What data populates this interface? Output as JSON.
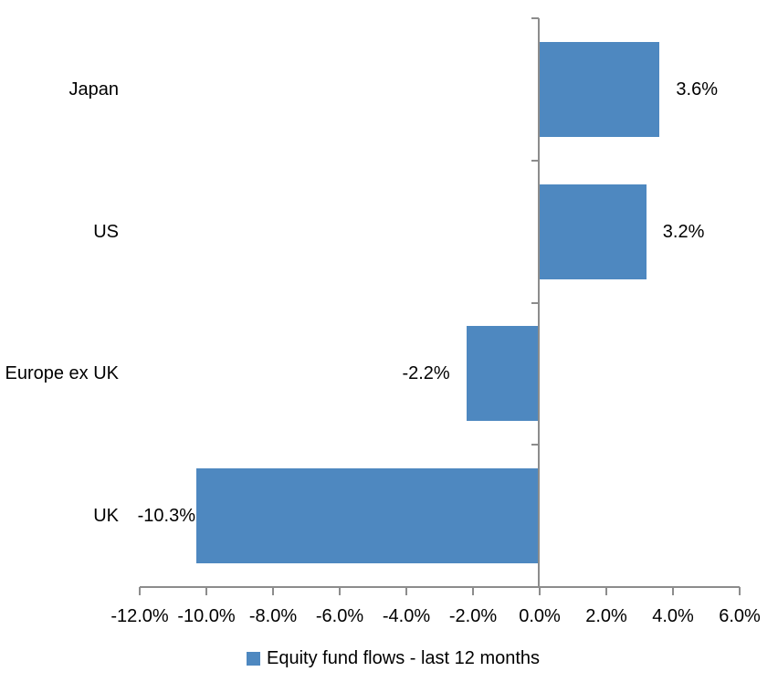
{
  "chart_data": {
    "type": "bar",
    "orientation": "horizontal",
    "title": "",
    "categories": [
      "Japan",
      "US",
      "Europe ex UK",
      "UK"
    ],
    "values": [
      3.6,
      3.2,
      -2.2,
      -10.3
    ],
    "data_labels": [
      "3.6%",
      "3.2%",
      "-2.2%",
      "-10.3%"
    ],
    "series": [
      {
        "name": "Equity fund flows - last 12 months",
        "values": [
          3.6,
          3.2,
          -2.2,
          -10.3
        ]
      }
    ],
    "xlabel": "",
    "ylabel": "",
    "xlim": [
      -12,
      6
    ],
    "x_ticks": [
      -12,
      -10,
      -8,
      -6,
      -4,
      -2,
      0,
      2,
      4,
      6
    ],
    "x_tick_labels": [
      "-12.0%",
      "-10.0%",
      "-8.0%",
      "-6.0%",
      "-4.0%",
      "-2.0%",
      "0.0%",
      "2.0%",
      "4.0%",
      "6.0%"
    ],
    "grid": false,
    "legend_position": "bottom",
    "colors": {
      "bar": "#4E88C0",
      "axis": "#8C8C8C",
      "text": "#000000",
      "background": "#FFFFFF"
    }
  },
  "legend": {
    "label": "Equity fund flows - last 12 months"
  }
}
